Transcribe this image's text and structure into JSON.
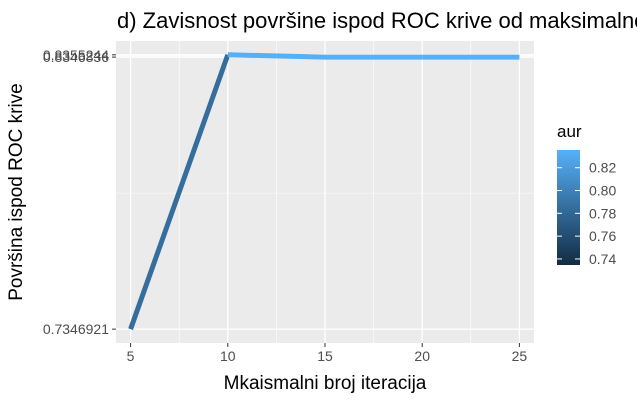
{
  "chart_data": {
    "type": "line",
    "title": "d) Zavisnost površine ispod ROC krive od maksimalnog broja iteracija",
    "xlabel": "Mkaismalni broj iteracija",
    "ylabel": "Površina ispod ROC krive",
    "x": [
      5,
      10,
      15,
      20,
      25
    ],
    "series": [
      {
        "values": [
          0.7346921,
          0.8355244,
          0.8346836,
          0.8346836,
          0.8346836
        ]
      }
    ],
    "xticks": [
      5,
      10,
      15,
      20,
      25
    ],
    "ytick_labels": [
      "0.7346921",
      "0.8346836",
      "0.8355244"
    ],
    "xlim": [
      4.25,
      25.75
    ],
    "ylim": [
      0.7296,
      0.8406
    ],
    "grid": true,
    "color_scale": {
      "title": "aur",
      "low_color": "#132B43",
      "high_color": "#56B1F7",
      "range": [
        0.7346921,
        0.8355244
      ],
      "ticks": [
        0.74,
        0.76,
        0.78,
        0.8,
        0.82
      ],
      "tick_labels": [
        "0.74",
        "0.76",
        "0.78",
        "0.80",
        "0.82"
      ],
      "legend_position": "right"
    },
    "panel_background": "#EBEBEB",
    "grid_color": "#FFFFFF"
  }
}
